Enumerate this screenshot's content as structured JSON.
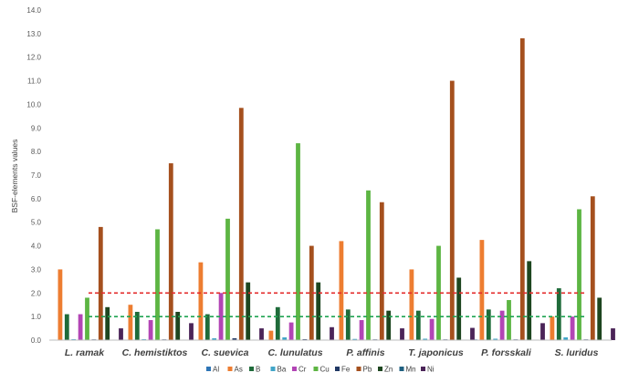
{
  "chart_data": {
    "type": "bar",
    "ylabel": "BSF-elements values",
    "xlabel": "",
    "title": "",
    "ylim": [
      0,
      14
    ],
    "y_ticks": [
      "0.0",
      "1.0",
      "2.0",
      "3.0",
      "4.0",
      "5.0",
      "6.0",
      "7.0",
      "8.0",
      "9.0",
      "10.0",
      "11.0",
      "12.0",
      "13.0",
      "14.0"
    ],
    "grid": false,
    "legend_position": "bottom",
    "categories": [
      "L. ramak",
      "C. hemistiktos",
      "C. suevica",
      "C. lunulatus",
      "P. affinis",
      "T. japonicus",
      "P. forsskali",
      "S. luridus"
    ],
    "series": [
      {
        "name": "Al",
        "color": "#2E75B6",
        "values": [
          0.02,
          0.02,
          0.02,
          0.02,
          0.02,
          0.02,
          0.03,
          0.02
        ]
      },
      {
        "name": "As",
        "color": "#ED7D31",
        "values": [
          3.0,
          1.5,
          3.3,
          0.4,
          4.2,
          3.0,
          4.25,
          1.0
        ]
      },
      {
        "name": "B",
        "color": "#1F6B3A",
        "values": [
          1.1,
          1.2,
          1.1,
          1.4,
          1.3,
          1.25,
          1.3,
          2.2
        ]
      },
      {
        "name": "Ba",
        "color": "#41A5C8",
        "values": [
          0.04,
          0.04,
          0.08,
          0.12,
          0.05,
          0.06,
          0.06,
          0.12
        ]
      },
      {
        "name": "Cr",
        "color": "#B245B5",
        "values": [
          1.1,
          0.85,
          2.0,
          0.75,
          0.85,
          0.9,
          1.25,
          1.0
        ]
      },
      {
        "name": "Cu",
        "color": "#5DB543",
        "values": [
          1.8,
          4.7,
          5.15,
          8.35,
          6.35,
          4.0,
          1.7,
          5.55
        ]
      },
      {
        "name": "Fe",
        "color": "#203864",
        "values": [
          0.03,
          0.03,
          0.08,
          0.04,
          0.03,
          0.03,
          0.03,
          0.03
        ]
      },
      {
        "name": "Pb",
        "color": "#A5501E",
        "values": [
          4.8,
          7.5,
          9.85,
          4.0,
          5.85,
          11.0,
          12.8,
          6.1
        ]
      },
      {
        "name": "Zn",
        "color": "#1E4620",
        "values": [
          1.4,
          1.2,
          2.45,
          2.45,
          1.25,
          2.65,
          3.35,
          1.8
        ]
      },
      {
        "name": "Mn",
        "color": "#1F6080",
        "values": [
          0.02,
          0.02,
          0.02,
          0.02,
          0.02,
          0.02,
          0.02,
          0.02
        ]
      },
      {
        "name": "Ni",
        "color": "#4B2458",
        "values": [
          0.5,
          0.72,
          0.5,
          0.55,
          0.5,
          0.52,
          0.72,
          0.5
        ]
      }
    ],
    "reference_lines": [
      {
        "value": 2.0,
        "color": "#E32B2B",
        "style": "dashed"
      },
      {
        "value": 1.0,
        "color": "#1FA352",
        "style": "dashed"
      }
    ]
  }
}
